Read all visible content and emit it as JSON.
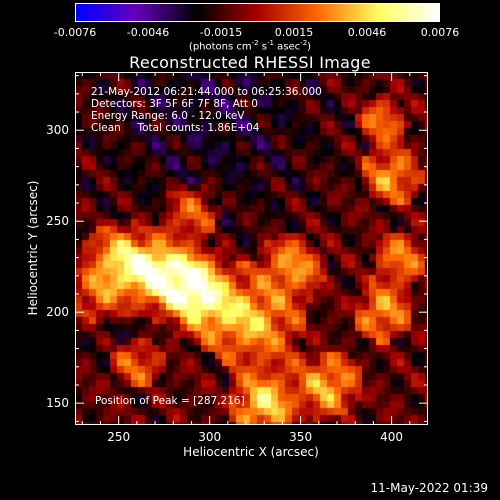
{
  "colorbar": {
    "ticks": [
      "-0.0076",
      "-0.0046",
      "-0.0015",
      "0.0015",
      "0.0046",
      "0.0076"
    ],
    "units_prefix": "(photons cm",
    "units_exp1": "-2",
    "units_mid": " s",
    "units_exp2": "-1",
    "units_suffix_a": " asec",
    "units_exp3": "-2",
    "units_close": ")",
    "colors": [
      "#0000ff",
      "#6600bb",
      "#000000",
      "#aa0000",
      "#ff6a00",
      "#ffff60",
      "#ffffff"
    ]
  },
  "chart_data": {
    "type": "heatmap",
    "title": "Reconstructed RHESSI Image",
    "xlabel": "Heliocentric X (arcsec)",
    "ylabel": "Heliocentric Y (arcsec)",
    "xlim": [
      226,
      420
    ],
    "ylim": [
      138,
      332
    ],
    "x_ticks": [
      250,
      300,
      350,
      400
    ],
    "y_ticks": [
      150,
      200,
      250,
      300
    ],
    "peak_position": [
      287,
      216
    ],
    "sources": [
      {
        "x": 287,
        "y": 216,
        "intensity": 1.0,
        "sigma": 10
      },
      {
        "x": 268,
        "y": 222,
        "intensity": 0.85,
        "sigma": 11
      },
      {
        "x": 300,
        "y": 205,
        "intensity": 0.55,
        "sigma": 12
      },
      {
        "x": 250,
        "y": 230,
        "intensity": 0.55,
        "sigma": 10
      },
      {
        "x": 240,
        "y": 210,
        "intensity": 0.4,
        "sigma": 9
      },
      {
        "x": 325,
        "y": 195,
        "intensity": 0.5,
        "sigma": 14
      },
      {
        "x": 345,
        "y": 225,
        "intensity": 0.45,
        "sigma": 10
      },
      {
        "x": 330,
        "y": 150,
        "intensity": 0.65,
        "sigma": 10
      },
      {
        "x": 365,
        "y": 160,
        "intensity": 0.5,
        "sigma": 10
      },
      {
        "x": 400,
        "y": 275,
        "intensity": 0.45,
        "sigma": 9
      },
      {
        "x": 395,
        "y": 305,
        "intensity": 0.35,
        "sigma": 8
      },
      {
        "x": 405,
        "y": 230,
        "intensity": 0.35,
        "sigma": 9
      },
      {
        "x": 395,
        "y": 200,
        "intensity": 0.45,
        "sigma": 9
      },
      {
        "x": 290,
        "y": 255,
        "intensity": 0.35,
        "sigma": 9
      },
      {
        "x": 260,
        "y": 172,
        "intensity": 0.3,
        "sigma": 9
      }
    ]
  },
  "info": {
    "line1": "21-May-2012 06:21:44.000 to 06:25:36.000",
    "line2": "Detectors: 3F 5F 6F 7F 8F, Att 0",
    "line3": "Energy Range: 6.0 - 12.0 keV",
    "line4": "Clean     Total counts: 1.86E+04"
  },
  "peak_label": "Position of Peak = [287,216]",
  "footer": "11-May-2022 01:39"
}
